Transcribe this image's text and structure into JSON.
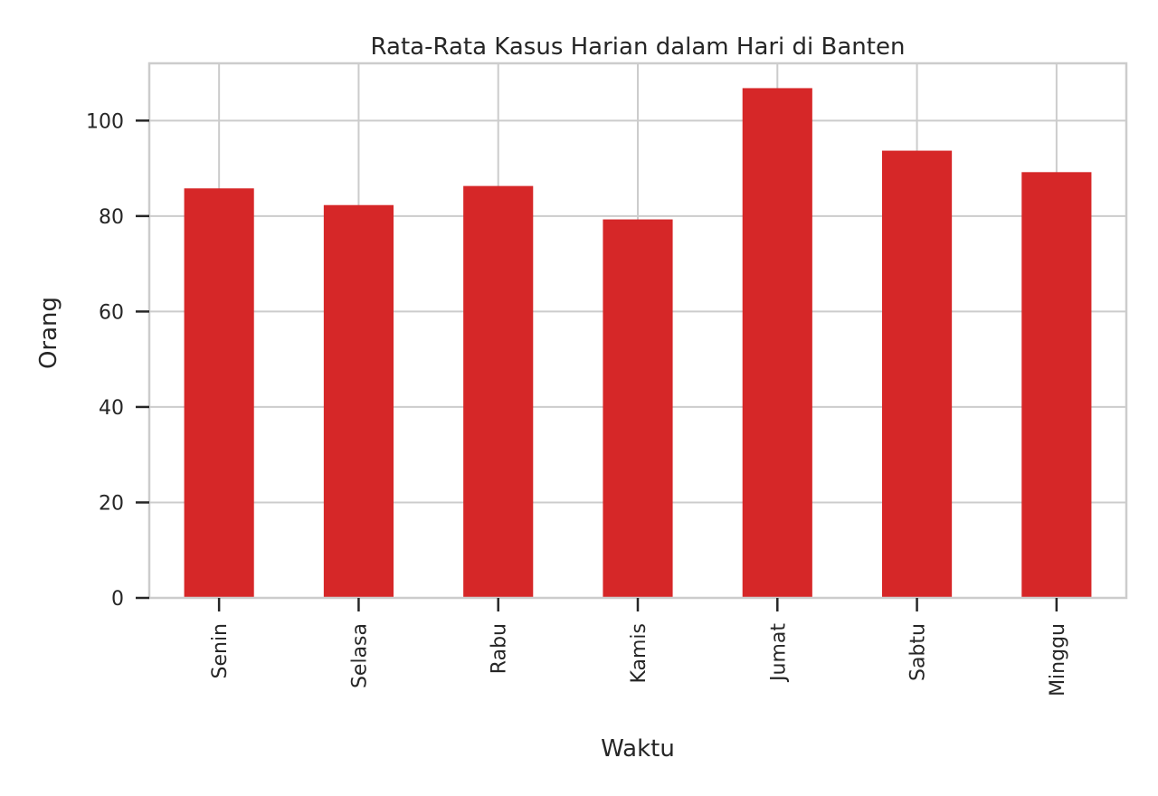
{
  "chart_data": {
    "type": "bar",
    "title": "Rata-Rata Kasus Harian dalam Hari di Banten",
    "xlabel": "Waktu",
    "ylabel": "Orang",
    "categories": [
      "Senin",
      "Selasa",
      "Rabu",
      "Kamis",
      "Jumat",
      "Sabtu",
      "Minggu"
    ],
    "values": [
      85.8,
      82.3,
      86.3,
      79.3,
      106.8,
      93.7,
      89.2
    ],
    "yticks": [
      0,
      20,
      40,
      60,
      80,
      100
    ],
    "ylim": [
      0,
      112
    ],
    "grid": true,
    "bar_color": "#d62728",
    "grid_color": "#cccccc",
    "text_color": "#262626"
  }
}
